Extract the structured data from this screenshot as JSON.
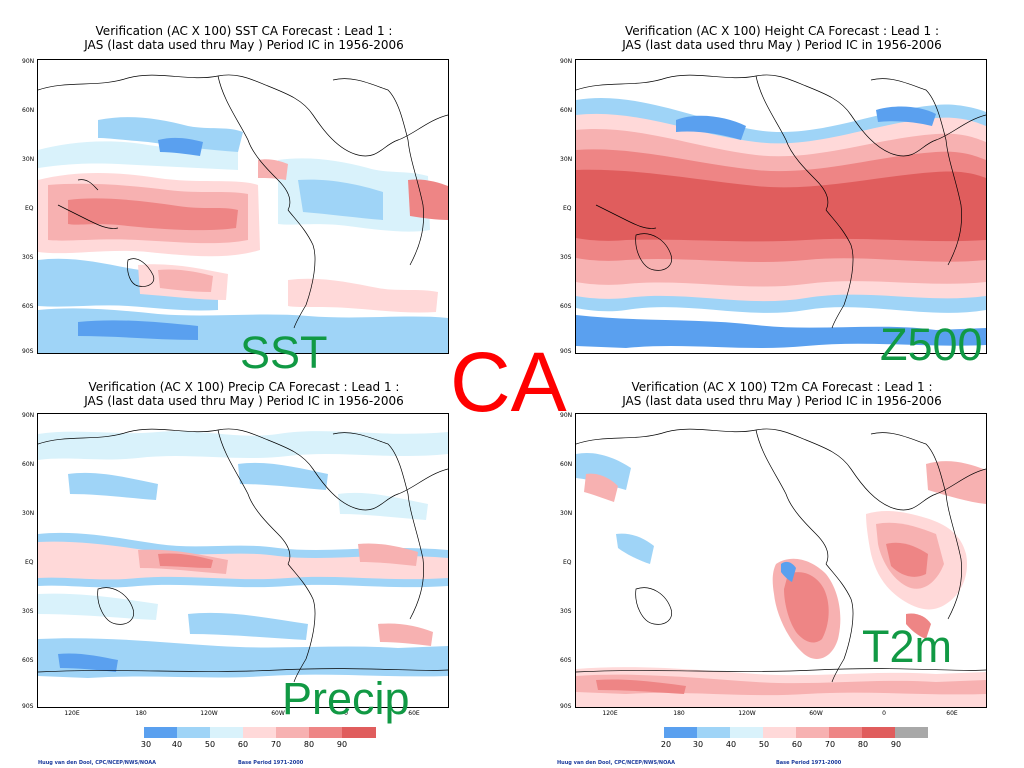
{
  "center_label": "CA",
  "colors": {
    "center_label": "#ff0000",
    "panel_label": "#119944",
    "title": "#000000",
    "footer": "#1a3a9c"
  },
  "latitude_labels": [
    "90N",
    "60N",
    "30N",
    "EQ",
    "30S",
    "60S",
    "90S"
  ],
  "longitude_labels": [
    "120E",
    "180",
    "120W",
    "60W",
    "0",
    "60E"
  ],
  "panels": [
    {
      "id": "sst",
      "title_line1": "Verification (AC X 100) SST CA Forecast : Lead 1 :",
      "title_line2": "JAS (last data used thru May ) Period IC in 1956-2006",
      "variable_label": "SST",
      "map_type": "anomaly-correlation map",
      "legend_values": [
        "30",
        "40",
        "50",
        "60",
        "70",
        "80",
        "90"
      ],
      "show_lon_labels": false
    },
    {
      "id": "z500",
      "title_line1": "Verification (AC X 100) Height CA Forecast : Lead 1 :",
      "title_line2": "JAS (last data used thru May ) Period IC in 1956-2006",
      "variable_label": "Z500",
      "map_type": "anomaly-correlation map",
      "legend_values": [],
      "show_lon_labels": false
    },
    {
      "id": "precip",
      "title_line1": "Verification (AC X 100) Precip CA Forecast : Lead 1 :",
      "title_line2": "JAS (last data used thru May ) Period IC in 1956-2006",
      "variable_label": "Precip",
      "map_type": "anomaly-correlation map",
      "legend_values": [
        "30",
        "40",
        "50",
        "60",
        "70",
        "80",
        "90"
      ],
      "show_lon_labels": true
    },
    {
      "id": "t2m",
      "title_line1": "Verification (AC X 100) T2m CA Forecast : Lead 1 :",
      "title_line2": "JAS (last data used thru May ) Period IC in 1956-2006",
      "variable_label": "T2m",
      "map_type": "anomaly-correlation map",
      "legend_values": [
        "20",
        "30",
        "40",
        "50",
        "60",
        "70",
        "80",
        "90"
      ],
      "show_lon_labels": true
    }
  ],
  "legend_colors": [
    "#5aa0ef",
    "#9fd4f7",
    "#d9f2fb",
    "#ffd9d9",
    "#f7b1b1",
    "#ee8585",
    "#e05d5d"
  ],
  "legend_colors_t2m": [
    "#5aa0ef",
    "#9fd4f7",
    "#d9f2fb",
    "#ffd9d9",
    "#f7b1b1",
    "#ee8585",
    "#e05d5d",
    "#a8a8a8"
  ],
  "footer": {
    "author": "Huug van den Dool, CPC/NCEP/NWS/NOAA",
    "base_period": "Base Period 1971-2000"
  }
}
